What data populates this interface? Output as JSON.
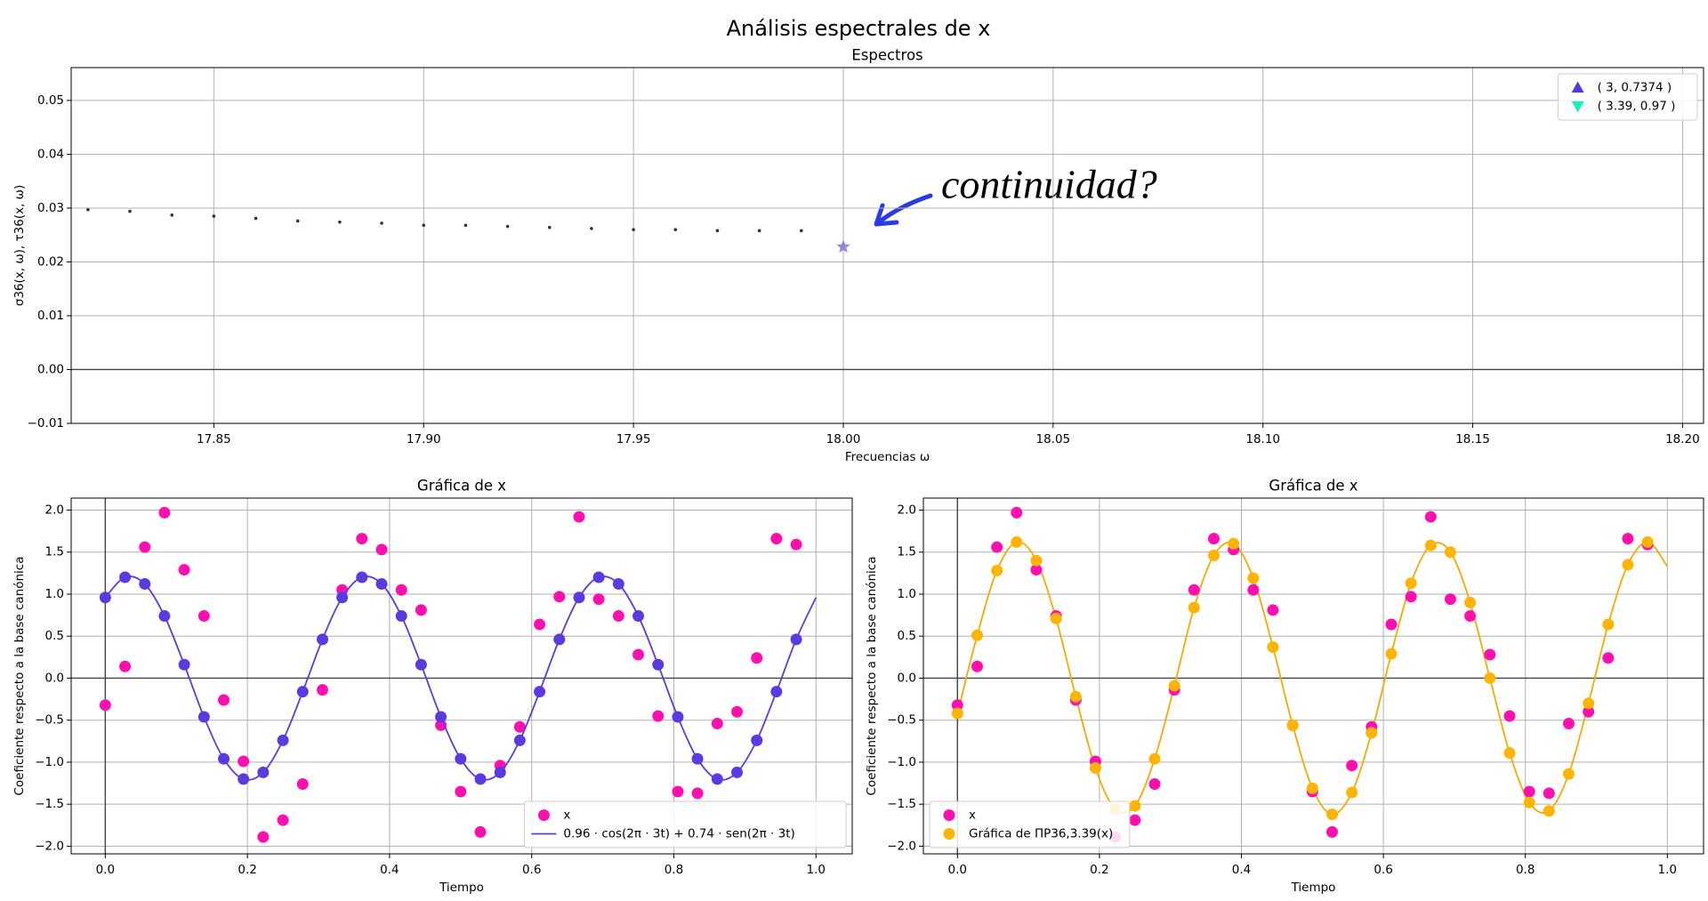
{
  "title": "Análisis espectrales de x",
  "chart_data": [
    {
      "type": "scatter",
      "title": "Espectros",
      "xlabel": "Frecuencias ω",
      "ylabel": "σ36(x, ω), τ36(x, ω)",
      "annotation": "continuidad?",
      "annotation_color": "#2a3be6",
      "xlim": [
        17.816,
        18.205
      ],
      "ylim": [
        -0.01,
        0.0561
      ],
      "xticks": [
        17.85,
        {
          "value": 17.9,
          "label": "17.90"
        },
        17.95,
        {
          "value": 18.0,
          "label": "18.00"
        },
        18.05,
        {
          "value": 18.1,
          "label": "18.10"
        },
        18.15,
        {
          "value": 18.2,
          "label": "18.20"
        }
      ],
      "yticks": [
        {
          "value": -0.01,
          "label": "−0.01"
        },
        {
          "value": 0,
          "label": "0.00"
        },
        0.01,
        0.02,
        0.03,
        0.04,
        0.05
      ],
      "grid": true,
      "zero_line_y": true,
      "zero_line_x": false,
      "legend_loc": "upper right",
      "legend": [
        {
          "label": "( 3, 0.7374 )",
          "color": "#4b3be0",
          "marker": "^"
        },
        {
          "label": "( 3.39, 0.97 )",
          "color": "#17f0c0",
          "marker": "v"
        }
      ],
      "series": [
        {
          "kind": "points",
          "marker": ".",
          "color": "#333333",
          "x": [
            17.82,
            17.83,
            17.84,
            17.85,
            17.86,
            17.87,
            17.88,
            17.89,
            17.9,
            17.91,
            17.92,
            17.93,
            17.94,
            17.95,
            17.96,
            17.97,
            17.98,
            17.99
          ],
          "values": [
            0.0297,
            0.0294,
            0.0287,
            0.0285,
            0.0281,
            0.0276,
            0.0274,
            0.0272,
            0.0268,
            0.0268,
            0.0266,
            0.0264,
            0.0262,
            0.026,
            0.026,
            0.0258,
            0.0258,
            0.0258
          ]
        },
        {
          "kind": "points",
          "marker": "*",
          "color": "#7a70d0",
          "x": [
            18.0
          ],
          "values": [
            0.0228
          ]
        }
      ]
    },
    {
      "type": "line",
      "title": "Gráfica de x",
      "xlabel": "Tiempo",
      "ylabel": "Coeficiente respecto a la base canónica",
      "xlim": [
        -0.048,
        1.051
      ],
      "ylim": [
        -2.091,
        2.143
      ],
      "xticks": [
        {
          "value": 0,
          "label": "0.0"
        },
        0.2,
        0.4,
        0.6,
        0.8,
        {
          "value": 1,
          "label": "1.0"
        }
      ],
      "yticks": [
        {
          "value": -2,
          "label": "−2.0"
        },
        {
          "value": -1.5,
          "label": "−1.5"
        },
        {
          "value": -1,
          "label": "−1.0"
        },
        {
          "value": -0.5,
          "label": "−0.5"
        },
        {
          "value": 0,
          "label": "0.0"
        },
        0.5,
        {
          "value": 1,
          "label": "1.0"
        },
        1.5,
        {
          "value": 2,
          "label": "2.0"
        }
      ],
      "grid": true,
      "zero_line_y": true,
      "zero_line_x": true,
      "legend_loc": "lower right",
      "x": [
        0,
        0.0278,
        0.0556,
        0.0833,
        0.1111,
        0.1389,
        0.1667,
        0.1944,
        0.2222,
        0.25,
        0.2778,
        0.3056,
        0.3333,
        0.3611,
        0.3889,
        0.4167,
        0.4444,
        0.4722,
        0.5,
        0.5278,
        0.5556,
        0.5833,
        0.6111,
        0.6389,
        0.6667,
        0.6944,
        0.7222,
        0.75,
        0.7778,
        0.8056,
        0.8333,
        0.8611,
        0.8889,
        0.9167,
        0.9444,
        0.9722
      ],
      "series": [
        {
          "name": "x",
          "kind": "points",
          "marker": "o",
          "color": "#ff0fb0",
          "values": [
            -0.32,
            0.14,
            1.56,
            1.97,
            1.29,
            0.74,
            -0.26,
            -0.99,
            -1.89,
            -1.69,
            -1.26,
            -0.14,
            1.05,
            1.66,
            1.53,
            1.05,
            0.81,
            -0.56,
            -1.35,
            -1.83,
            -1.04,
            -0.58,
            0.64,
            0.97,
            1.92,
            0.94,
            0.74,
            0.28,
            -0.45,
            -1.35,
            -1.37,
            -0.54,
            -0.4,
            0.24,
            1.66,
            1.59
          ]
        },
        {
          "name": "0.96 · cos(2π · 3t) + 0.74 · sen(2π · 3t)",
          "kind": "line",
          "color": "#5b3be0",
          "x": [
            0,
            0.0278,
            0.0556,
            0.0833,
            0.1111,
            0.1389,
            0.1667,
            0.1944,
            0.2222,
            0.25,
            0.2778,
            0.3056,
            0.3333,
            0.3611,
            0.3889,
            0.4167,
            0.4444,
            0.4722,
            0.5,
            0.5278,
            0.5556,
            0.5833,
            0.6111,
            0.6389,
            0.6667,
            0.6944,
            0.7222,
            0.75,
            0.7778,
            0.8056,
            0.8333,
            0.8611,
            0.8889,
            0.9167,
            0.9444,
            0.9722,
            1
          ],
          "values": [
            0.96,
            1.201,
            1.121,
            0.74,
            0.161,
            -0.461,
            -0.96,
            -1.201,
            -1.121,
            -0.74,
            -0.161,
            0.461,
            0.96,
            1.201,
            1.121,
            0.74,
            0.161,
            -0.461,
            -0.96,
            -1.201,
            -1.121,
            -0.74,
            -0.161,
            0.461,
            0.96,
            1.201,
            1.121,
            0.74,
            0.161,
            -0.461,
            -0.96,
            -1.201,
            -1.121,
            -0.74,
            -0.161,
            0.461,
            0.96
          ]
        },
        {
          "kind": "points",
          "marker": "o",
          "color": "#5b3be0",
          "values": [
            0.96,
            1.201,
            1.121,
            0.74,
            0.161,
            -0.461,
            -0.96,
            -1.201,
            -1.121,
            -0.74,
            -0.161,
            0.461,
            0.96,
            1.201,
            1.121,
            0.74,
            0.161,
            -0.461,
            -0.96,
            -1.201,
            -1.121,
            -0.74,
            -0.161,
            0.461,
            0.96,
            1.201,
            1.121,
            0.74,
            0.161,
            -0.461,
            -0.96,
            -1.201,
            -1.121,
            -0.74,
            -0.161,
            0.461
          ]
        }
      ]
    },
    {
      "type": "line",
      "title": "Gráfica de x",
      "xlabel": "Tiempo",
      "ylabel": "Coeficiente respecto a la base canónica",
      "xlim": [
        -0.048,
        1.051
      ],
      "ylim": [
        -2.091,
        2.143
      ],
      "xticks": [
        {
          "value": 0,
          "label": "0.0"
        },
        0.2,
        0.4,
        0.6,
        0.8,
        {
          "value": 1,
          "label": "1.0"
        }
      ],
      "yticks": [
        {
          "value": -2,
          "label": "−2.0"
        },
        {
          "value": -1.5,
          "label": "−1.5"
        },
        {
          "value": -1,
          "label": "−1.0"
        },
        {
          "value": -0.5,
          "label": "−0.5"
        },
        {
          "value": 0,
          "label": "0.0"
        },
        0.5,
        {
          "value": 1,
          "label": "1.0"
        },
        1.5,
        {
          "value": 2,
          "label": "2.0"
        }
      ],
      "grid": true,
      "zero_line_y": true,
      "zero_line_x": true,
      "legend_loc": "lower left",
      "x": [
        0,
        0.0278,
        0.0556,
        0.0833,
        0.1111,
        0.1389,
        0.1667,
        0.1944,
        0.2222,
        0.25,
        0.2778,
        0.3056,
        0.3333,
        0.3611,
        0.3889,
        0.4167,
        0.4444,
        0.4722,
        0.5,
        0.5278,
        0.5556,
        0.5833,
        0.6111,
        0.6389,
        0.6667,
        0.6944,
        0.7222,
        0.75,
        0.7778,
        0.8056,
        0.8333,
        0.8611,
        0.8889,
        0.9167,
        0.9444,
        0.9722
      ],
      "series": [
        {
          "kind": "line",
          "color": "#f5aa00",
          "x": [
            0,
            0.0278,
            0.0556,
            0.0833,
            0.1111,
            0.1389,
            0.1667,
            0.1944,
            0.2222,
            0.25,
            0.2778,
            0.3056,
            0.3333,
            0.3611,
            0.3889,
            0.4167,
            0.4444,
            0.4722,
            0.5,
            0.5278,
            0.5556,
            0.5833,
            0.6111,
            0.6389,
            0.6667,
            0.6944,
            0.7222,
            0.75,
            0.7778,
            0.8056,
            0.8333,
            0.8611,
            0.8889,
            0.9167,
            0.9444,
            0.9722,
            1
          ],
          "values": [
            -0.42,
            0.51,
            1.28,
            1.62,
            1.4,
            0.71,
            -0.22,
            -1.07,
            -1.56,
            -1.52,
            -0.96,
            -0.09,
            0.84,
            1.46,
            1.6,
            1.19,
            0.37,
            -0.56,
            -1.31,
            -1.62,
            -1.36,
            -0.65,
            0.29,
            1.13,
            1.58,
            1.5,
            0.9,
            0,
            -0.89,
            -1.48,
            -1.58,
            -1.14,
            -0.3,
            0.64,
            1.35,
            1.62,
            1.33
          ]
        },
        {
          "name": "x",
          "kind": "points",
          "marker": "o",
          "color": "#ff0fb0",
          "values": [
            -0.32,
            0.14,
            1.56,
            1.97,
            1.29,
            0.74,
            -0.26,
            -0.99,
            -1.89,
            -1.69,
            -1.26,
            -0.14,
            1.05,
            1.66,
            1.53,
            1.05,
            0.81,
            -0.56,
            -1.35,
            -1.83,
            -1.04,
            -0.58,
            0.64,
            0.97,
            1.92,
            0.94,
            0.74,
            0.28,
            -0.45,
            -1.35,
            -1.37,
            -0.54,
            -0.4,
            0.24,
            1.66,
            1.59
          ]
        },
        {
          "name": "Gráfica de ΠP36,3.39(x)",
          "kind": "points",
          "marker": "o",
          "color": "#ffb400",
          "values": [
            -0.42,
            0.51,
            1.28,
            1.62,
            1.4,
            0.71,
            -0.22,
            -1.07,
            -1.56,
            -1.52,
            -0.96,
            -0.09,
            0.84,
            1.46,
            1.6,
            1.19,
            0.37,
            -0.56,
            -1.31,
            -1.62,
            -1.36,
            -0.65,
            0.29,
            1.13,
            1.58,
            1.5,
            0.9,
            0,
            -0.89,
            -1.48,
            -1.58,
            -1.14,
            -0.3,
            0.64,
            1.35,
            1.62
          ]
        }
      ]
    }
  ]
}
